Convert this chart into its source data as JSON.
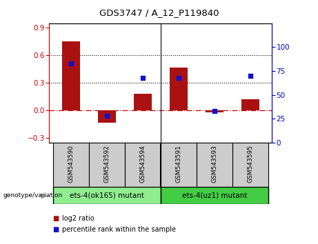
{
  "title": "GDS3747 / A_12_P119840",
  "categories": [
    "GSM543590",
    "GSM543592",
    "GSM543594",
    "GSM543591",
    "GSM543593",
    "GSM543595"
  ],
  "log2_ratio": [
    0.75,
    -0.13,
    0.18,
    0.47,
    -0.02,
    0.12
  ],
  "percentile_rank": [
    83,
    28,
    68,
    68,
    33,
    70
  ],
  "bar_color": "#aa1111",
  "scatter_color": "#1111cc",
  "group1_label": "ets-4(ok165) mutant",
  "group2_label": "ets-4(uz1) mutant",
  "group1_color": "#90ee90",
  "group2_color": "#44cc44",
  "ylim_left": [
    -0.35,
    0.95
  ],
  "ylim_right": [
    0,
    125
  ],
  "yticks_left": [
    -0.3,
    0.0,
    0.3,
    0.6,
    0.9
  ],
  "yticks_right": [
    0,
    25,
    50,
    75,
    100
  ],
  "hlines": [
    0.3,
    0.6
  ],
  "zero_line": 0.0,
  "bar_width": 0.5,
  "legend_log2": "log2 ratio",
  "legend_pct": "percentile rank within the sample",
  "left_color": "#cc0000",
  "right_color": "#0000cc"
}
